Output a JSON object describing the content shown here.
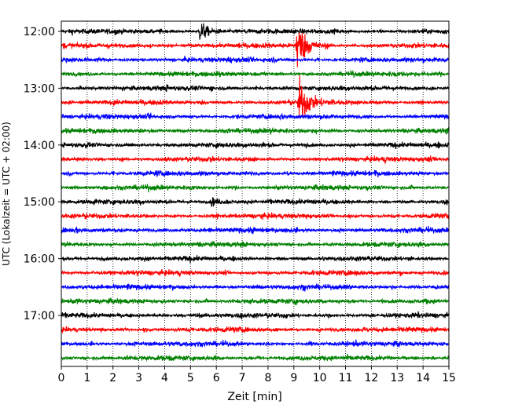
{
  "chart_data": {
    "type": "line",
    "subtype": "helicorder",
    "xlabel": "Zeit  [min]",
    "ylabel": "UTC (Lokalzeit = UTC + 02:00)",
    "xlim": [
      0,
      15
    ],
    "x_ticks": [
      "0",
      "1",
      "2",
      "3",
      "4",
      "5",
      "6",
      "7",
      "8",
      "9",
      "10",
      "11",
      "12",
      "13",
      "14",
      "15"
    ],
    "y_tick_labels": [
      "12:00",
      "13:00",
      "14:00",
      "15:00",
      "16:00",
      "17:00"
    ],
    "grid": "vertical-dotted",
    "line_colors": [
      "#000000",
      "#ff0000",
      "#0000ff",
      "#008000"
    ],
    "traces": [
      {
        "start": "12:00"
      },
      {
        "start": "12:15"
      },
      {
        "start": "12:30"
      },
      {
        "start": "12:45"
      },
      {
        "start": "13:00"
      },
      {
        "start": "13:15"
      },
      {
        "start": "13:30"
      },
      {
        "start": "13:45"
      },
      {
        "start": "14:00"
      },
      {
        "start": "14:15"
      },
      {
        "start": "14:30"
      },
      {
        "start": "14:45"
      },
      {
        "start": "15:00"
      },
      {
        "start": "15:15"
      },
      {
        "start": "15:30"
      },
      {
        "start": "15:45"
      },
      {
        "start": "16:00"
      },
      {
        "start": "16:15"
      },
      {
        "start": "16:30"
      },
      {
        "start": "16:45"
      },
      {
        "start": "17:00"
      },
      {
        "start": "17:15"
      },
      {
        "start": "17:30"
      },
      {
        "start": "17:45"
      }
    ],
    "events": [
      {
        "trace_start": "12:00",
        "minute": 5.35,
        "amplitude": 1.2
      },
      {
        "trace_start": "12:15",
        "minute": 9.1,
        "amplitude": 3.5
      },
      {
        "trace_start": "13:15",
        "minute": 9.2,
        "amplitude": 3.0
      },
      {
        "trace_start": "15:00",
        "minute": 5.8,
        "amplitude": 0.5
      }
    ]
  }
}
